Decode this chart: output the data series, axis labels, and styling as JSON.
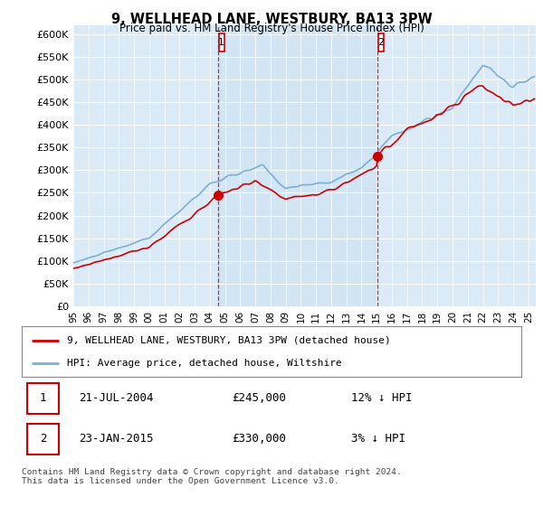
{
  "title": "9, WELLHEAD LANE, WESTBURY, BA13 3PW",
  "subtitle": "Price paid vs. HM Land Registry's House Price Index (HPI)",
  "ylim": [
    0,
    620000
  ],
  "ytick_values": [
    0,
    50000,
    100000,
    150000,
    200000,
    250000,
    300000,
    350000,
    400000,
    450000,
    500000,
    550000,
    600000
  ],
  "xlim_start": 1995.0,
  "xlim_end": 2025.5,
  "sale1_x": 2004.54,
  "sale1_y": 245000,
  "sale2_x": 2015.06,
  "sale2_y": 330000,
  "vline1_x": 2004.54,
  "vline2_x": 2015.06,
  "bg_color": "#daeaf7",
  "shade_color": "#c5dcf0",
  "red_line_color": "#cc0000",
  "blue_line_color": "#7bafd4",
  "legend_entry1": "9, WELLHEAD LANE, WESTBURY, BA13 3PW (detached house)",
  "legend_entry2": "HPI: Average price, detached house, Wiltshire",
  "table_row1": [
    "1",
    "21-JUL-2004",
    "£245,000",
    "12% ↓ HPI"
  ],
  "table_row2": [
    "2",
    "23-JAN-2015",
    "£330,000",
    "3% ↓ HPI"
  ],
  "footer": "Contains HM Land Registry data © Crown copyright and database right 2024.\nThis data is licensed under the Open Government Licence v3.0."
}
